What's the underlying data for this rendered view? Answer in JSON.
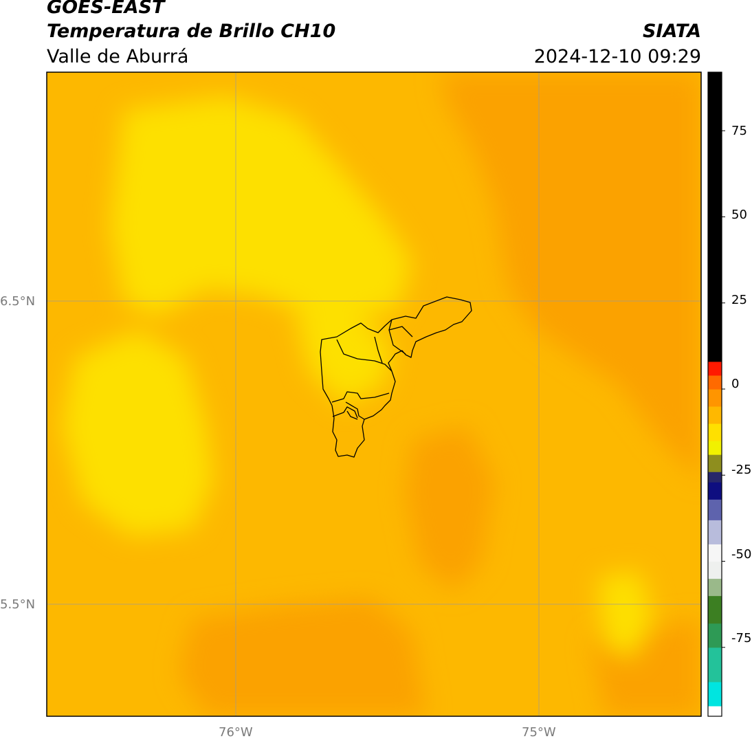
{
  "header": {
    "satellite": "GOES-EAST",
    "product": "Temperatura de Brillo CH10",
    "region": "Valle de Aburrá",
    "organization": "SIATA",
    "datetime": "2024-12-10 09:29"
  },
  "map": {
    "lat_labels": [
      "6.5°N",
      "5.5°N"
    ],
    "lon_labels": [
      "76°W",
      "75°W"
    ],
    "field_colors": {
      "dominant": "#fdb800",
      "warm": "#fba200",
      "cool": "#fde000"
    },
    "boundary_color": "#000000"
  },
  "colorbar": {
    "tick_labels": [
      "75",
      "50",
      "25",
      "0",
      "-25",
      "-50",
      "-75"
    ],
    "segments": [
      {
        "from": -95,
        "to": -92,
        "color": "#ffffff"
      },
      {
        "from": -92,
        "to": -85,
        "color": "#00e5e0"
      },
      {
        "from": -85,
        "to": -75,
        "color": "#23c29a"
      },
      {
        "from": -75,
        "to": -68,
        "color": "#2e9a55"
      },
      {
        "from": -68,
        "to": -60,
        "color": "#3c7f22"
      },
      {
        "from": -60,
        "to": -55,
        "color": "#9ab98a"
      },
      {
        "from": -55,
        "to": -50,
        "color": "#eef0ee"
      },
      {
        "from": -50,
        "to": -45,
        "color": "#f6f6f6"
      },
      {
        "from": -45,
        "to": -38,
        "color": "#b8bcdc"
      },
      {
        "from": -38,
        "to": -32,
        "color": "#5e63ad"
      },
      {
        "from": -32,
        "to": -27,
        "color": "#0e0e80"
      },
      {
        "from": -27,
        "to": -24,
        "color": "#27276a"
      },
      {
        "from": -24,
        "to": -19,
        "color": "#8e8e1e"
      },
      {
        "from": -19,
        "to": -15,
        "color": "#f1f100"
      },
      {
        "from": -15,
        "to": -10,
        "color": "#ffe000"
      },
      {
        "from": -10,
        "to": -5,
        "color": "#ffb800"
      },
      {
        "from": -5,
        "to": 0,
        "color": "#ff9500"
      },
      {
        "from": 0,
        "to": 4,
        "color": "#ff6a00"
      },
      {
        "from": 4,
        "to": 8,
        "color": "#ff1a00"
      },
      {
        "from": 8,
        "to": 92,
        "color": "#000000"
      }
    ]
  }
}
